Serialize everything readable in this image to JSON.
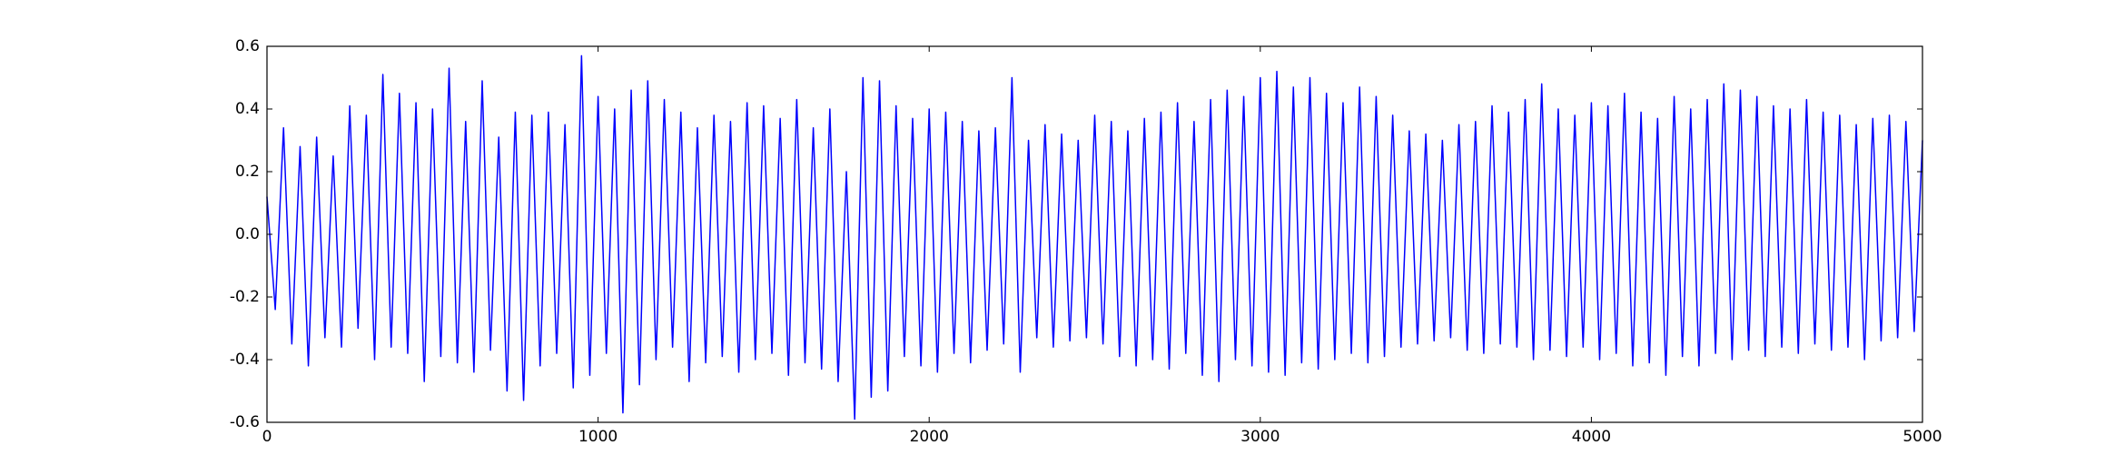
{
  "chart_data": {
    "type": "line",
    "x": [
      0,
      25,
      50,
      75,
      100,
      125,
      150,
      175,
      200,
      225,
      250,
      275,
      300,
      325,
      350,
      375,
      400,
      425,
      450,
      475,
      500,
      525,
      550,
      575,
      600,
      625,
      650,
      675,
      700,
      725,
      750,
      775,
      800,
      825,
      850,
      875,
      900,
      925,
      950,
      975,
      1000,
      1025,
      1050,
      1075,
      1100,
      1125,
      1150,
      1175,
      1200,
      1225,
      1250,
      1275,
      1300,
      1325,
      1350,
      1375,
      1400,
      1425,
      1450,
      1475,
      1500,
      1525,
      1550,
      1575,
      1600,
      1625,
      1650,
      1675,
      1700,
      1725,
      1750,
      1775,
      1800,
      1825,
      1850,
      1875,
      1900,
      1925,
      1950,
      1975,
      2000,
      2025,
      2050,
      2075,
      2100,
      2125,
      2150,
      2175,
      2200,
      2225,
      2250,
      2275,
      2300,
      2325,
      2350,
      2375,
      2400,
      2425,
      2450,
      2475,
      2500,
      2525,
      2550,
      2575,
      2600,
      2625,
      2650,
      2675,
      2700,
      2725,
      2750,
      2775,
      2800,
      2825,
      2850,
      2875,
      2900,
      2925,
      2950,
      2975,
      3000,
      3025,
      3050,
      3075,
      3100,
      3125,
      3150,
      3175,
      3200,
      3225,
      3250,
      3275,
      3300,
      3325,
      3350,
      3375,
      3400,
      3425,
      3450,
      3475,
      3500,
      3525,
      3550,
      3575,
      3600,
      3625,
      3650,
      3675,
      3700,
      3725,
      3750,
      3775,
      3800,
      3825,
      3850,
      3875,
      3900,
      3925,
      3950,
      3975,
      4000,
      4025,
      4050,
      4075,
      4100,
      4125,
      4150,
      4175,
      4200,
      4225,
      4250,
      4275,
      4300,
      4325,
      4350,
      4375,
      4400,
      4425,
      4450,
      4475,
      4500,
      4525,
      4550,
      4575,
      4600,
      4625,
      4650,
      4675,
      4700,
      4725,
      4750,
      4775,
      4800,
      4825,
      4850,
      4875,
      4900,
      4925,
      4950,
      4975,
      5000
    ],
    "series": [
      {
        "color": "#0000ff",
        "values": [
          0.12,
          -0.24,
          0.34,
          -0.35,
          0.28,
          -0.42,
          0.31,
          -0.33,
          0.25,
          -0.36,
          0.41,
          -0.3,
          0.38,
          -0.4,
          0.51,
          -0.36,
          0.45,
          -0.38,
          0.42,
          -0.47,
          0.4,
          -0.39,
          0.53,
          -0.41,
          0.36,
          -0.44,
          0.49,
          -0.37,
          0.31,
          -0.5,
          0.39,
          -0.53,
          0.38,
          -0.42,
          0.39,
          -0.38,
          0.35,
          -0.49,
          0.57,
          -0.45,
          0.44,
          -0.38,
          0.4,
          -0.57,
          0.46,
          -0.48,
          0.49,
          -0.4,
          0.43,
          -0.36,
          0.39,
          -0.47,
          0.34,
          -0.41,
          0.38,
          -0.39,
          0.36,
          -0.44,
          0.42,
          -0.4,
          0.41,
          -0.38,
          0.37,
          -0.45,
          0.43,
          -0.41,
          0.34,
          -0.43,
          0.4,
          -0.47,
          0.2,
          -0.59,
          0.5,
          -0.52,
          0.49,
          -0.5,
          0.41,
          -0.39,
          0.37,
          -0.42,
          0.4,
          -0.44,
          0.39,
          -0.38,
          0.36,
          -0.41,
          0.33,
          -0.37,
          0.34,
          -0.35,
          0.5,
          -0.44,
          0.3,
          -0.33,
          0.35,
          -0.36,
          0.32,
          -0.34,
          0.3,
          -0.33,
          0.38,
          -0.35,
          0.36,
          -0.39,
          0.33,
          -0.42,
          0.37,
          -0.4,
          0.39,
          -0.43,
          0.42,
          -0.38,
          0.36,
          -0.45,
          0.43,
          -0.47,
          0.46,
          -0.4,
          0.44,
          -0.42,
          0.5,
          -0.44,
          0.52,
          -0.45,
          0.47,
          -0.41,
          0.5,
          -0.43,
          0.45,
          -0.4,
          0.42,
          -0.38,
          0.47,
          -0.41,
          0.44,
          -0.39,
          0.38,
          -0.36,
          0.33,
          -0.35,
          0.32,
          -0.34,
          0.3,
          -0.33,
          0.35,
          -0.37,
          0.36,
          -0.38,
          0.41,
          -0.35,
          0.39,
          -0.36,
          0.43,
          -0.4,
          0.48,
          -0.37,
          0.4,
          -0.39,
          0.38,
          -0.36,
          0.42,
          -0.4,
          0.41,
          -0.38,
          0.45,
          -0.42,
          0.39,
          -0.41,
          0.37,
          -0.45,
          0.44,
          -0.39,
          0.4,
          -0.42,
          0.43,
          -0.38,
          0.48,
          -0.4,
          0.46,
          -0.37,
          0.44,
          -0.39,
          0.41,
          -0.36,
          0.4,
          -0.38,
          0.43,
          -0.35,
          0.39,
          -0.37,
          0.38,
          -0.36,
          0.35,
          -0.4,
          0.37,
          -0.34,
          0.38,
          -0.33,
          0.36,
          -0.31,
          0.3
        ]
      }
    ],
    "xlim": [
      0,
      5000
    ],
    "xticks": [
      0,
      1000,
      2000,
      3000,
      4000,
      5000
    ],
    "ylim": [
      -0.6,
      0.6
    ],
    "yticks": [
      -0.6,
      -0.4,
      -0.2,
      {
        "value": 0,
        "label": "0.0"
      },
      0.2,
      0.4,
      0.6
    ]
  }
}
